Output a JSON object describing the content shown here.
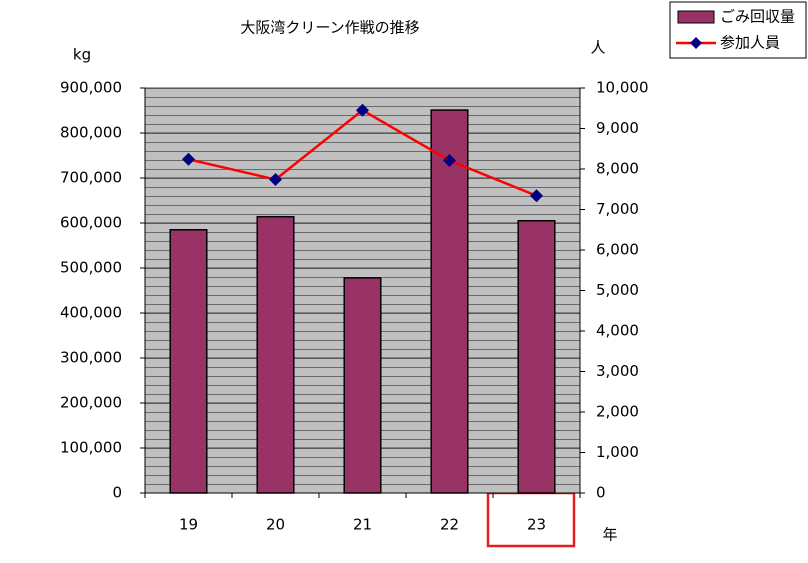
{
  "chart_data": {
    "type": "bar-line",
    "title": "大阪湾クリーン作戦の推移",
    "y_label": "kg",
    "y2_label": "人",
    "x_label": "年",
    "categories": [
      "19",
      "20",
      "21",
      "22",
      "23"
    ],
    "series": [
      {
        "name": "ごみ回収量",
        "type": "bar",
        "color": "#993366",
        "axis": "y",
        "values": [
          585000,
          614000,
          478000,
          851000,
          605000
        ]
      },
      {
        "name": "参加人員",
        "type": "line",
        "color": "#ff0000",
        "marker_color": "#000080",
        "axis": "y2",
        "values": [
          8240,
          7740,
          9450,
          8210,
          7340
        ]
      }
    ],
    "ylim": [
      0,
      900000
    ],
    "yticks": [
      0,
      {
        "value": 100000,
        "label": "100,000"
      },
      {
        "value": 200000,
        "label": "200,000"
      },
      {
        "value": 300000,
        "label": "300,000"
      },
      {
        "value": 400000,
        "label": "400,000"
      },
      {
        "value": 500000,
        "label": "500,000"
      },
      {
        "value": 600000,
        "label": "600,000"
      },
      {
        "value": 700000,
        "label": "700,000"
      },
      {
        "value": 800000,
        "label": "800,000"
      },
      {
        "value": 900000,
        "label": "900,000"
      }
    ],
    "y2lim": [
      0,
      10000
    ],
    "y2ticks": [
      0,
      {
        "value": 1000,
        "label": "1,000"
      },
      {
        "value": 2000,
        "label": "2,000"
      },
      {
        "value": 3000,
        "label": "3,000"
      },
      {
        "value": 4000,
        "label": "4,000"
      },
      {
        "value": 5000,
        "label": "5,000"
      },
      {
        "value": 6000,
        "label": "6,000"
      },
      {
        "value": 7000,
        "label": "7,000"
      },
      {
        "value": 8000,
        "label": "8,000"
      },
      {
        "value": 9000,
        "label": "9,000"
      },
      {
        "value": 10000,
        "label": "10,000"
      }
    ],
    "grid": true,
    "plot_background": "#c0c0c0",
    "legend": "top-right"
  }
}
